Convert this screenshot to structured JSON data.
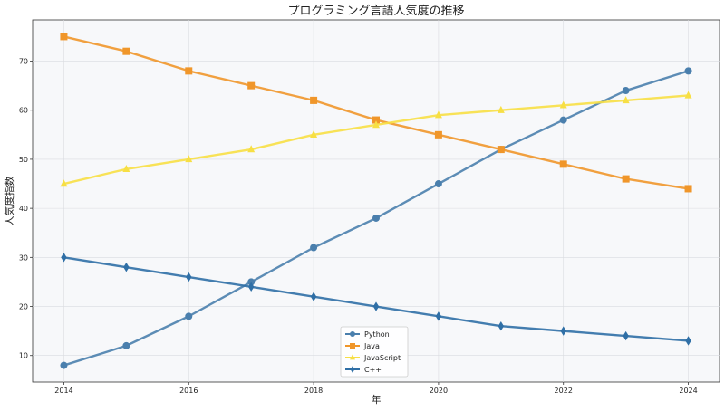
{
  "chart_data": {
    "type": "line",
    "title": "プログラミング言語人気度の推移",
    "xlabel": "年",
    "ylabel": "人気度指数",
    "x": [
      2014,
      2015,
      2016,
      2017,
      2018,
      2019,
      2020,
      2021,
      2022,
      2023,
      2024
    ],
    "xticks": [
      "2014",
      "2016",
      "2018",
      "2020",
      "2022",
      "2024"
    ],
    "yticks": [
      "10",
      "20",
      "30",
      "40",
      "50",
      "60",
      "70"
    ],
    "xlim": [
      2013.5,
      2024.5
    ],
    "ylim": [
      4.6,
      78.4
    ],
    "grid": true,
    "legend_position": "bottom-center",
    "series": [
      {
        "name": "Python",
        "color": "#4a7fad",
        "marker": "circle",
        "values": [
          8,
          12,
          18,
          25,
          32,
          38,
          45,
          52,
          58,
          64,
          68
        ]
      },
      {
        "name": "Java",
        "color": "#f0962a",
        "marker": "square",
        "values": [
          75,
          72,
          68,
          65,
          62,
          58,
          55,
          52,
          49,
          46,
          44
        ]
      },
      {
        "name": "JavaScript",
        "color": "#f7df44",
        "marker": "triangle",
        "values": [
          45,
          48,
          50,
          52,
          55,
          57,
          59,
          60,
          61,
          62,
          63
        ]
      },
      {
        "name": "C++",
        "color": "#2f6fa6",
        "marker": "diamond",
        "values": [
          30,
          28,
          26,
          24,
          22,
          20,
          18,
          16,
          15,
          14,
          13
        ]
      }
    ]
  }
}
